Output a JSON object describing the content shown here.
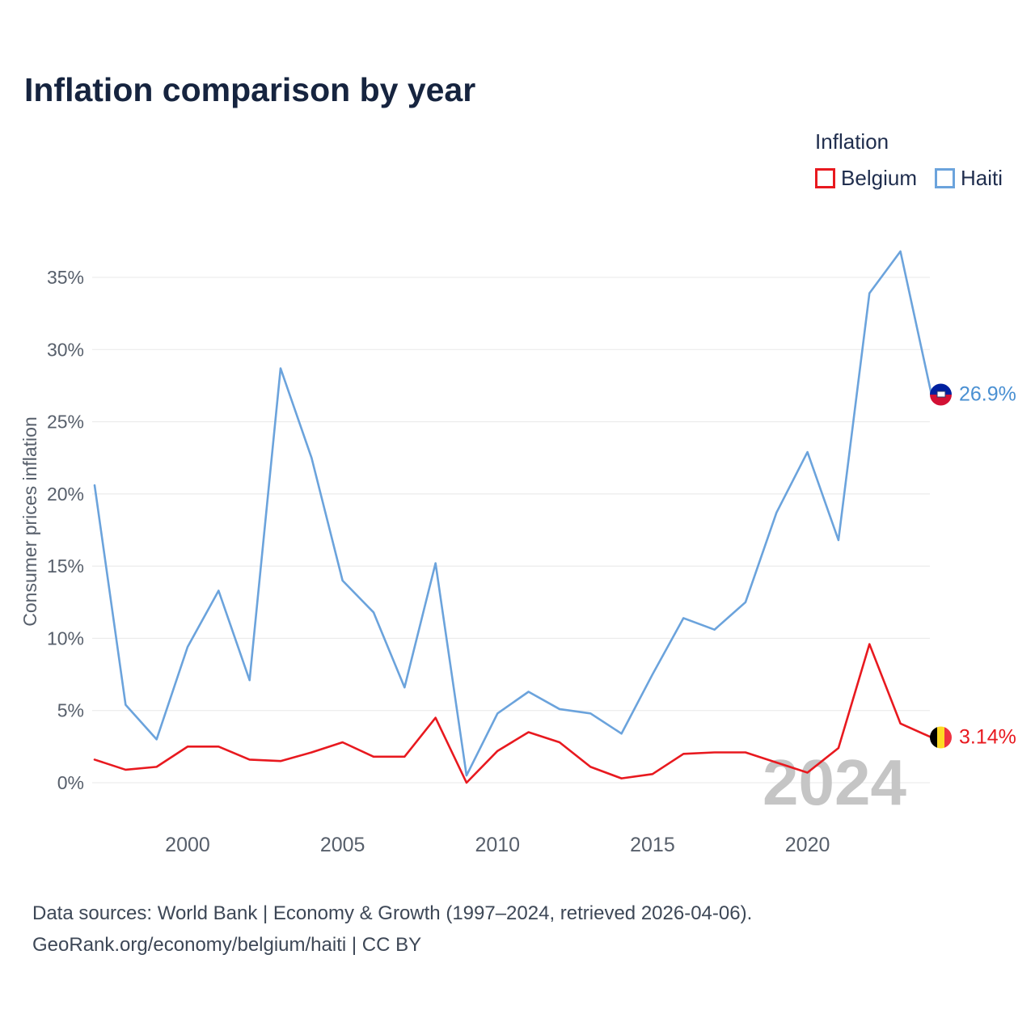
{
  "title": "Inflation comparison by year",
  "legend": {
    "title": "Inflation",
    "items": [
      {
        "label": "Belgium",
        "color": "#e8191f"
      },
      {
        "label": "Haiti",
        "color": "#6ba3dc"
      }
    ]
  },
  "end_labels": {
    "haiti": {
      "text": "26.9%",
      "color": "#4a90d2"
    },
    "belgium": {
      "text": "3.14%",
      "color": "#e8191f"
    }
  },
  "watermark": "2024",
  "footer": {
    "line1": "Data sources: World Bank | Economy & Growth (1997–2024, retrieved 2026-04-06).",
    "line2": "GeoRank.org/economy/belgium/haiti | CC BY"
  },
  "chart_data": {
    "type": "line",
    "title": "Inflation comparison by year",
    "xlabel": "",
    "ylabel": "Consumer prices inflation",
    "x": [
      1997,
      1998,
      1999,
      2000,
      2001,
      2002,
      2003,
      2004,
      2005,
      2006,
      2007,
      2008,
      2009,
      2010,
      2011,
      2012,
      2013,
      2014,
      2015,
      2016,
      2017,
      2018,
      2019,
      2020,
      2021,
      2022,
      2023,
      2024
    ],
    "series": [
      {
        "name": "Belgium",
        "color": "#e8191f",
        "values": [
          1.6,
          0.9,
          1.1,
          2.5,
          2.5,
          1.6,
          1.5,
          2.1,
          2.8,
          1.8,
          1.8,
          4.5,
          0.0,
          2.2,
          3.5,
          2.8,
          1.1,
          0.3,
          0.6,
          2.0,
          2.1,
          2.1,
          1.4,
          0.7,
          2.4,
          9.6,
          4.1,
          3.14
        ]
      },
      {
        "name": "Haiti",
        "color": "#6ba3dc",
        "values": [
          20.6,
          5.4,
          3.0,
          9.4,
          13.3,
          7.1,
          28.7,
          22.5,
          14.0,
          11.8,
          6.6,
          15.2,
          0.5,
          4.8,
          6.3,
          5.1,
          4.8,
          3.4,
          7.5,
          11.4,
          10.6,
          12.5,
          18.7,
          22.9,
          16.8,
          33.9,
          36.8,
          26.9
        ]
      }
    ],
    "y_ticks": [
      0,
      5,
      10,
      15,
      20,
      25,
      30,
      35
    ],
    "x_ticks": [
      2000,
      2005,
      2010,
      2015,
      2020
    ],
    "ylim": [
      -1,
      38
    ],
    "grid": "horizontal",
    "legend_position": "top-right"
  }
}
